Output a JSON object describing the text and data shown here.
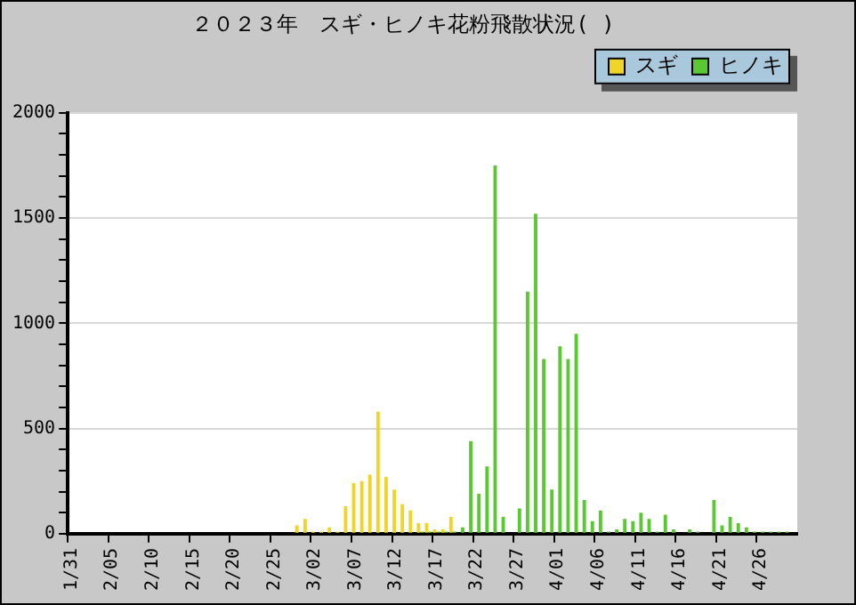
{
  "chart_data": {
    "type": "bar",
    "title": "２０２３年　スギ・ヒノキ花粉飛散状況( )",
    "categories": [
      "1/31",
      null,
      null,
      null,
      null,
      "2/05",
      null,
      null,
      null,
      null,
      "2/10",
      null,
      null,
      null,
      null,
      "2/15",
      null,
      null,
      null,
      null,
      "2/20",
      null,
      null,
      null,
      null,
      "2/25",
      null,
      null,
      null,
      null,
      "3/02",
      null,
      null,
      null,
      null,
      "3/07",
      null,
      null,
      null,
      null,
      "3/12",
      null,
      null,
      null,
      null,
      "3/17",
      null,
      null,
      null,
      null,
      "3/22",
      null,
      null,
      null,
      null,
      "3/27",
      null,
      null,
      null,
      null,
      "4/01",
      null,
      null,
      null,
      null,
      "4/06",
      null,
      null,
      null,
      null,
      "4/11",
      null,
      null,
      null,
      null,
      "4/16",
      null,
      null,
      null,
      null,
      "4/21",
      null,
      null,
      null,
      null,
      "4/26",
      null,
      null,
      null,
      null
    ],
    "series": [
      {
        "name": "スギ",
        "color": "#f0d428",
        "values": [
          0,
          0,
          0,
          0,
          0,
          0,
          0,
          0,
          0,
          0,
          0,
          0,
          0,
          0,
          0,
          0,
          0,
          0,
          0,
          0,
          0,
          0,
          0,
          0,
          0,
          0,
          0,
          0,
          40,
          70,
          10,
          10,
          30,
          10,
          130,
          240,
          250,
          280,
          580,
          270,
          210,
          140,
          110,
          50,
          50,
          20,
          20,
          80,
          0,
          0,
          0,
          0,
          0,
          0,
          0,
          0,
          0,
          0,
          0,
          0,
          0,
          0,
          0,
          0,
          0,
          0,
          0,
          0,
          0,
          0,
          0,
          0,
          0,
          0,
          0,
          0,
          0,
          0,
          0,
          0,
          0,
          0,
          0,
          0,
          0,
          0,
          0,
          0,
          0,
          0
        ]
      },
      {
        "name": "ヒノキ",
        "color": "#5ac832",
        "values": [
          0,
          0,
          0,
          0,
          0,
          0,
          0,
          0,
          0,
          0,
          0,
          0,
          0,
          0,
          0,
          0,
          0,
          0,
          0,
          0,
          0,
          0,
          0,
          0,
          0,
          0,
          0,
          0,
          0,
          0,
          0,
          0,
          0,
          0,
          0,
          0,
          0,
          0,
          0,
          0,
          0,
          0,
          0,
          10,
          10,
          10,
          10,
          10,
          30,
          440,
          190,
          320,
          1750,
          80,
          0,
          120,
          1150,
          1520,
          830,
          210,
          890,
          830,
          950,
          160,
          60,
          110,
          10,
          20,
          70,
          60,
          100,
          70,
          10,
          90,
          20,
          0,
          20,
          10,
          0,
          160,
          40,
          80,
          50,
          30,
          10,
          10,
          10,
          10,
          10,
          0
        ]
      }
    ],
    "ylim": [
      0,
      2000
    ],
    "yticks": [
      0,
      {
        "value": 100,
        "label": null
      },
      {
        "value": 200,
        "label": null
      },
      {
        "value": 300,
        "label": null
      },
      {
        "value": 400,
        "label": null
      },
      500,
      {
        "value": 600,
        "label": null
      },
      {
        "value": 700,
        "label": null
      },
      {
        "value": 800,
        "label": null
      },
      {
        "value": 900,
        "label": null
      },
      1000,
      {
        "value": 1100,
        "label": null
      },
      {
        "value": 1200,
        "label": null
      },
      {
        "value": 1300,
        "label": null
      },
      {
        "value": 1400,
        "label": null
      },
      1500,
      {
        "value": 1600,
        "label": null
      },
      {
        "value": 1700,
        "label": null
      },
      {
        "value": 1800,
        "label": null
      },
      {
        "value": 1900,
        "label": null
      },
      2000
    ],
    "grid": "y",
    "legend": "top right"
  }
}
